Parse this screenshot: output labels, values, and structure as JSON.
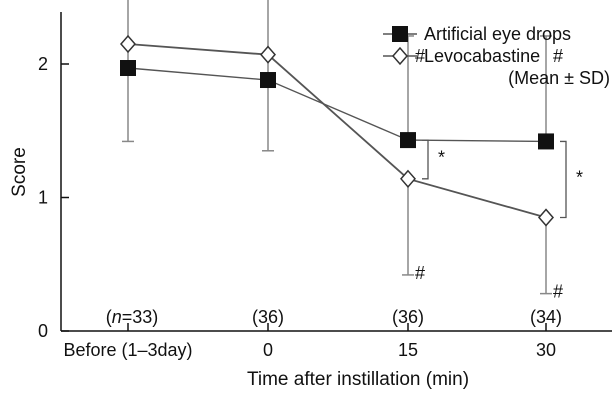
{
  "chart_data": {
    "type": "line",
    "xlabel": "Time after instillation (min)",
    "ylabel": "Score",
    "ylim": [
      0,
      3
    ],
    "yticks": [
      "0",
      "1",
      "2",
      "3"
    ],
    "categories": [
      "Before (1–3day)",
      "0",
      "15",
      "30"
    ],
    "n_prefix": "n",
    "n_labels": [
      "(n=33)",
      "(36)",
      "(36)",
      "(34)"
    ],
    "legend": {
      "position": "top-right",
      "entries": [
        "Artificial eye drops",
        "Levocabastine"
      ],
      "note": "(Mean ± SD)"
    },
    "series": [
      {
        "name": "Artificial eye drops",
        "marker": "square-filled",
        "color": "#111111",
        "line_color": "#555555",
        "values": [
          1.97,
          1.88,
          1.43,
          1.42
        ],
        "sd_upper": [
          2.73,
          2.63,
          2.21,
          2.21
        ],
        "sd_lower": [
          1.42,
          1.35,
          1.43,
          1.42
        ]
      },
      {
        "name": "Levocabastine",
        "marker": "diamond-open",
        "color": "#111111",
        "line_color": "#555555",
        "values": [
          2.15,
          2.07,
          1.14,
          0.85
        ],
        "sd_upper": [
          2.15,
          2.07,
          1.14,
          0.85
        ],
        "sd_lower": [
          2.15,
          2.07,
          0.42,
          0.28
        ]
      }
    ],
    "annotations": {
      "hash_marks": [
        {
          "series": "Artificial eye drops",
          "category": "15",
          "text": "#"
        },
        {
          "series": "Artificial eye drops",
          "category": "30",
          "text": "#"
        },
        {
          "series": "Levocabastine",
          "category": "15",
          "text": "#"
        },
        {
          "series": "Levocabastine",
          "category": "30",
          "text": "#"
        }
      ],
      "between_group": [
        {
          "category": "15",
          "text": "*"
        },
        {
          "category": "30",
          "text": "*"
        }
      ]
    }
  }
}
